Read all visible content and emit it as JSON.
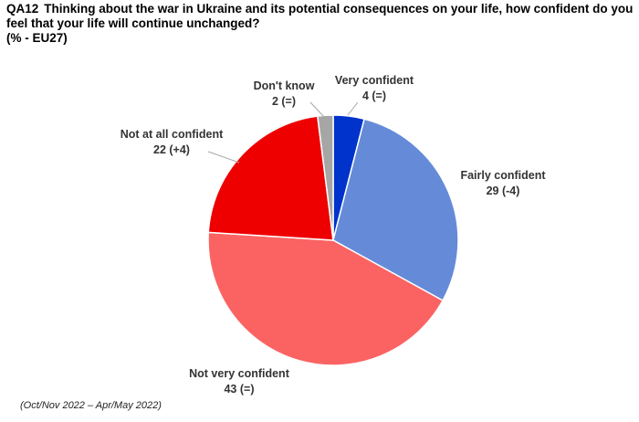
{
  "header": {
    "question_code": "QA12",
    "question_text": "Thinking about the war in Ukraine and its potential consequences on your life, how confident do you feel that your life will continue unchanged?",
    "subtitle": "(% - EU27)"
  },
  "footnote": "(Oct/Nov 2022 – Apr/May 2022)",
  "chart_data": {
    "type": "pie",
    "title": "QA12 Thinking about the war in Ukraine and its potential consequences on your life, how confident do you feel that your life will continue unchanged?",
    "subtitle": "(% - EU27)",
    "start_angle_deg": 0,
    "direction": "clockwise",
    "slices": [
      {
        "key": "very-confident",
        "label": "Very confident",
        "value": 4,
        "change": "(=)",
        "color": "#0033cc"
      },
      {
        "key": "fairly-confident",
        "label": "Fairly confident",
        "value": 29,
        "change": "(-4)",
        "color": "#658bd8"
      },
      {
        "key": "not-very-confident",
        "label": "Not very confident",
        "value": 43,
        "change": "(=)",
        "color": "#fb6363"
      },
      {
        "key": "not-at-all-confident",
        "label": "Not at all confident",
        "value": 22,
        "change": "(+4)",
        "color": "#ee0000"
      },
      {
        "key": "dont-know",
        "label": "Don't know",
        "value": 2,
        "change": "(=)",
        "color": "#a6a6a6"
      }
    ]
  }
}
